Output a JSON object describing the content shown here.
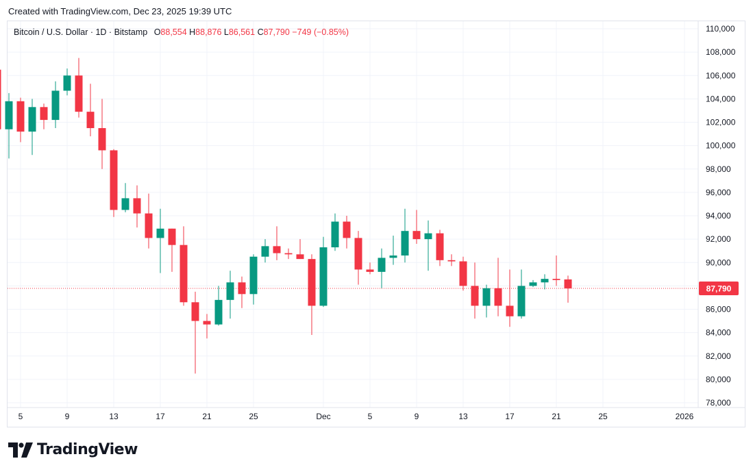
{
  "header": {
    "created": "Created with TradingView.com, Dec 23, 2025 19:39 UTC"
  },
  "legend": {
    "symbol": "Bitcoin / U.S. Dollar · 1D · Bitstamp",
    "o_label": "O",
    "o_value": "88,554",
    "h_label": "H",
    "h_value": "88,876",
    "l_label": "L",
    "l_value": "86,561",
    "c_label": "C",
    "c_value": "87,790",
    "change": "−749 (−0.85%)"
  },
  "brand": {
    "name": "TradingView"
  },
  "colors": {
    "up": "#089981",
    "down": "#f23645",
    "grid": "#f0f3fa",
    "text": "#131722",
    "price_tag_bg": "#f23645"
  },
  "chart_data": {
    "type": "candlestick",
    "title": "Bitcoin / U.S. Dollar · 1D · Bitstamp",
    "xlabel": "",
    "ylabel": "",
    "ylim": [
      77000,
      110500
    ],
    "y_ticks": [
      78000,
      80000,
      82000,
      84000,
      86000,
      88000,
      90000,
      92000,
      94000,
      96000,
      98000,
      100000,
      102000,
      104000,
      106000,
      108000,
      110000
    ],
    "y_tick_labels": [
      "78,000",
      "80,000",
      "82,000",
      "84,000",
      "86,000",
      "88,000",
      "90,000",
      "92,000",
      "94,000",
      "96,000",
      "98,000",
      "100,000",
      "102,000",
      "104,000",
      "106,000",
      "108,000",
      "110,000"
    ],
    "x_ticks": [
      {
        "day": 5,
        "label": "5"
      },
      {
        "day": 9,
        "label": "9"
      },
      {
        "day": 13,
        "label": "13"
      },
      {
        "day": 17,
        "label": "17"
      },
      {
        "day": 21,
        "label": "21"
      },
      {
        "day": 25,
        "label": "25"
      },
      {
        "day": 31,
        "label": "Dec"
      },
      {
        "day": 35,
        "label": "5"
      },
      {
        "day": 39,
        "label": "9"
      },
      {
        "day": 43,
        "label": "13"
      },
      {
        "day": 47,
        "label": "17"
      },
      {
        "day": 51,
        "label": "21"
      },
      {
        "day": 55,
        "label": "25"
      },
      {
        "day": 62,
        "label": "2026"
      }
    ],
    "last_price": 87790,
    "last_price_label": "87,790",
    "series": [
      {
        "day": 3,
        "o": 106500,
        "h": 107300,
        "l": 98900,
        "c": 101400
      },
      {
        "day": 4,
        "o": 101400,
        "h": 104500,
        "l": 98900,
        "c": 103800
      },
      {
        "day": 5,
        "o": 103800,
        "h": 104100,
        "l": 100300,
        "c": 101200
      },
      {
        "day": 6,
        "o": 101200,
        "h": 104000,
        "l": 99200,
        "c": 103300
      },
      {
        "day": 7,
        "o": 103300,
        "h": 103600,
        "l": 101400,
        "c": 102200
      },
      {
        "day": 8,
        "o": 102200,
        "h": 105500,
        "l": 101500,
        "c": 104700
      },
      {
        "day": 9,
        "o": 104700,
        "h": 106600,
        "l": 104300,
        "c": 106000
      },
      {
        "day": 10,
        "o": 106000,
        "h": 107500,
        "l": 102400,
        "c": 102900
      },
      {
        "day": 11,
        "o": 102900,
        "h": 105300,
        "l": 100800,
        "c": 101500
      },
      {
        "day": 12,
        "o": 101500,
        "h": 104000,
        "l": 98000,
        "c": 99600
      },
      {
        "day": 13,
        "o": 99600,
        "h": 99700,
        "l": 93900,
        "c": 94500
      },
      {
        "day": 14,
        "o": 94500,
        "h": 96800,
        "l": 94300,
        "c": 95500
      },
      {
        "day": 15,
        "o": 95500,
        "h": 96600,
        "l": 93000,
        "c": 94200
      },
      {
        "day": 16,
        "o": 94200,
        "h": 95900,
        "l": 91200,
        "c": 92100
      },
      {
        "day": 17,
        "o": 92100,
        "h": 94600,
        "l": 89100,
        "c": 92900
      },
      {
        "day": 18,
        "o": 92900,
        "h": 92900,
        "l": 89200,
        "c": 91500
      },
      {
        "day": 19,
        "o": 91500,
        "h": 93100,
        "l": 86300,
        "c": 86600
      },
      {
        "day": 20,
        "o": 86600,
        "h": 87500,
        "l": 80500,
        "c": 85000
      },
      {
        "day": 21,
        "o": 85000,
        "h": 85600,
        "l": 83500,
        "c": 84700
      },
      {
        "day": 22,
        "o": 84700,
        "h": 88000,
        "l": 84600,
        "c": 86800
      },
      {
        "day": 23,
        "o": 86800,
        "h": 89300,
        "l": 85200,
        "c": 88300
      },
      {
        "day": 24,
        "o": 88300,
        "h": 88800,
        "l": 86100,
        "c": 87300
      },
      {
        "day": 25,
        "o": 87300,
        "h": 90700,
        "l": 86400,
        "c": 90500
      },
      {
        "day": 26,
        "o": 90500,
        "h": 92000,
        "l": 90000,
        "c": 91400
      },
      {
        "day": 27,
        "o": 91400,
        "h": 93100,
        "l": 90200,
        "c": 90800
      },
      {
        "day": 28,
        "o": 90800,
        "h": 91200,
        "l": 90300,
        "c": 90700
      },
      {
        "day": 29,
        "o": 90700,
        "h": 92000,
        "l": 90300,
        "c": 90300
      },
      {
        "day": 30,
        "o": 90300,
        "h": 90700,
        "l": 83800,
        "c": 86300
      },
      {
        "day": 31,
        "o": 86300,
        "h": 92200,
        "l": 86200,
        "c": 91300
      },
      {
        "day": 32,
        "o": 91300,
        "h": 94200,
        "l": 91000,
        "c": 93500
      },
      {
        "day": 33,
        "o": 93500,
        "h": 94000,
        "l": 91200,
        "c": 92100
      },
      {
        "day": 34,
        "o": 92100,
        "h": 92700,
        "l": 88100,
        "c": 89400
      },
      {
        "day": 35,
        "o": 89400,
        "h": 90000,
        "l": 89000,
        "c": 89200
      },
      {
        "day": 36,
        "o": 89200,
        "h": 91200,
        "l": 87800,
        "c": 90400
      },
      {
        "day": 37,
        "o": 90400,
        "h": 92300,
        "l": 89800,
        "c": 90600
      },
      {
        "day": 38,
        "o": 90600,
        "h": 94600,
        "l": 90000,
        "c": 92700
      },
      {
        "day": 39,
        "o": 92700,
        "h": 94500,
        "l": 91600,
        "c": 92000
      },
      {
        "day": 40,
        "o": 92000,
        "h": 93600,
        "l": 89300,
        "c": 92500
      },
      {
        "day": 41,
        "o": 92500,
        "h": 92800,
        "l": 89700,
        "c": 90200
      },
      {
        "day": 42,
        "o": 90200,
        "h": 90700,
        "l": 89700,
        "c": 90100
      },
      {
        "day": 43,
        "o": 90100,
        "h": 90500,
        "l": 87600,
        "c": 88000
      },
      {
        "day": 44,
        "o": 88000,
        "h": 90000,
        "l": 85200,
        "c": 86300
      },
      {
        "day": 45,
        "o": 86300,
        "h": 88100,
        "l": 85300,
        "c": 87800
      },
      {
        "day": 46,
        "o": 87800,
        "h": 90400,
        "l": 85400,
        "c": 86300
      },
      {
        "day": 47,
        "o": 86300,
        "h": 89400,
        "l": 84500,
        "c": 85400
      },
      {
        "day": 48,
        "o": 85400,
        "h": 89400,
        "l": 85200,
        "c": 88000
      },
      {
        "day": 49,
        "o": 88000,
        "h": 88500,
        "l": 87900,
        "c": 88300
      },
      {
        "day": 50,
        "o": 88300,
        "h": 89000,
        "l": 87700,
        "c": 88600
      },
      {
        "day": 51,
        "o": 88600,
        "h": 90600,
        "l": 88000,
        "c": 88500
      },
      {
        "day": 52,
        "o": 88554,
        "h": 88876,
        "l": 86561,
        "c": 87790
      }
    ]
  }
}
